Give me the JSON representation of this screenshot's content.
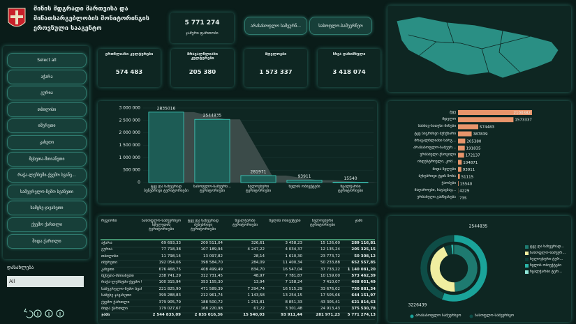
{
  "header": {
    "title_lines": [
      "მიწის მდგრადი მართვისა და",
      "მიწათსარგებლობის მონიტორინგის",
      "ეროვნული სააგენტო"
    ]
  },
  "total": {
    "value": "5 771 274",
    "label": "ჯამური ფართობი"
  },
  "toggle_buttons": [
    "არასასოფლო სამეურნ...",
    "სასოფლო-სამეურნეო"
  ],
  "kpis": [
    {
      "label": "ერთწლიანი კულტურები",
      "value": "574 483"
    },
    {
      "label": "მრავალწლიანი კულტურები",
      "value": "205 380"
    },
    {
      "label": "მდელოები",
      "value": "1 573 337"
    },
    {
      "label": "სხვა დანიშნული",
      "value": "3 418 074"
    }
  ],
  "slicer": [
    "Select all",
    "აჭარა",
    "გურია",
    "თბილისი",
    "იმერეთი",
    "კახეთი",
    "მცხეთა-მთიანეთი",
    "რაჭა-ლეჩხუმი-ქვემო სვანე...",
    "სამეგრელო-ზემო სვანეთი",
    "სამცხე-ჯავახეთი",
    "ქვემო ქართლი",
    "შიდა ქართლი"
  ],
  "filter": {
    "label": "დასახლება",
    "value": "All"
  },
  "chart_data": [
    {
      "type": "bar",
      "categories": [
        "ტყე და ნახევრად ბუნებრივი ტერიტორიები",
        "სასოფლო-სამეურნ... ტერიტორიები",
        "ხელოვნური ტერიტორიები",
        "წყლის ობიექტები",
        "წყალჭარბი ტერიტორიები"
      ],
      "values": [
        2835016,
        2544835,
        281971,
        93911,
        15540
      ],
      "color": "#1d5c55",
      "edge_color": "#3fd0c0",
      "area_color": "#3b4b49",
      "ylim": [
        0,
        3000000
      ],
      "yticks": [
        {
          "value": 0,
          "label": "0"
        },
        {
          "value": 500000,
          "label": "500 000"
        },
        {
          "value": 1000000,
          "label": "1 000 000"
        },
        {
          "value": 1500000,
          "label": "1 500 000"
        },
        {
          "value": 2000000,
          "label": "2 000 000"
        },
        {
          "value": 2500000,
          "label": "2 500 000"
        },
        {
          "value": 3000000,
          "label": "3 000 000"
        }
      ]
    },
    {
      "type": "hbar",
      "categories": [
        "ტყე",
        "მდელო",
        "სახნავ-სათესი მიწები",
        "ტყე სიგრძივი ბუჩქნარი",
        "მრავალწლიანი ნარგ...",
        "არასასოფლო-სამეურ...",
        "ურბანული ქსოვილი",
        "ინდუსტრიული, კომ...",
        "შიდა წყლები",
        "ბუნებრივი ტყის ზონა",
        "ჭაობები",
        "მაღაროები, ნაგავსაყ...",
        "ურბანული გამწვანება"
      ],
      "values": [
        2100382,
        1573337,
        574483,
        387839,
        205380,
        191835,
        172137,
        104871,
        93911,
        51115,
        15540,
        4229,
        735
      ],
      "color": "#e8956b"
    },
    {
      "type": "donut",
      "outer": {
        "categories": [
          "არასასოფლო სამეურნეო",
          "სასოფლო-სამეურნეო"
        ],
        "values": [
          3226439,
          2544835
        ],
        "colors": [
          "#1aa39a",
          "#0e4d47"
        ]
      },
      "inner": {
        "categories": [
          "ტყე და ნახევრად...",
          "სასოფლო-სამეურ...",
          "ხელოვნური ტერ...",
          "წყლის ობიექტები",
          "წყალჭარბი ტერ..."
        ],
        "values": [
          2835016,
          2544835,
          281971,
          93911,
          15540
        ],
        "colors": [
          "#1e7a70",
          "#f0eea0",
          "#0c3d38",
          "#2bb5a8",
          "#8fe6d8"
        ]
      }
    }
  ],
  "table": {
    "columns": [
      "რეგიონი",
      "სასოფლო-სამეურნეო ხმელეთის ტერიტორიები",
      "ტყე და ნახევრად ბუნებრივი ტერიტორიები",
      "წყალჭარბი ტერიტორიები",
      "წყლის ობიექტები",
      "ხელოვნური ტერიტორიები",
      "ჯამი"
    ],
    "rows": [
      [
        "აჭარა",
        "69 693,33",
        "200 511,04",
        "326,61",
        "3 458,23",
        "15 126,60",
        "289 116,81"
      ],
      [
        "გურია",
        "77 718,38",
        "107 189,94",
        "4 247,22",
        "4 034,37",
        "12 135,24",
        "205 325,15"
      ],
      [
        "თბილისი",
        "11 798,14",
        "13 097,82",
        "28,14",
        "1 610,30",
        "23 773,72",
        "50 308,12"
      ],
      [
        "იმერეთი",
        "192 054,06",
        "398 584,70",
        "284,09",
        "11 400,34",
        "50 233,88",
        "652 557,85"
      ],
      [
        "კახეთი",
        "676 468,75",
        "408 499,49",
        "834,70",
        "16 547,04",
        "37 733,22",
        "1 140 081,20"
      ],
      [
        "მცხეთა-მთიანეთი",
        "238 741,29",
        "312 731,45",
        "48,97",
        "7 781,87",
        "10 159,00",
        "573 462,39"
      ],
      [
        "რაჭა-ლეჩხუმი-ქვემო სვანეთი",
        "100 315,94",
        "353 155,30",
        "13,94",
        "7 158,24",
        "7 410,07",
        "468 051,49"
      ],
      [
        "სამეგრელო-ზემო სვანეთი",
        "221 825,90",
        "471 589,39",
        "7 294,74",
        "16 515,29",
        "33 676,02",
        "750 881,34"
      ],
      [
        "სამცხე-ჯავახეთი",
        "399 288,83",
        "212 961,74",
        "1 143,58",
        "13 254,15",
        "17 505,66",
        "644 151,97"
      ],
      [
        "ქვემო ქართლი",
        "379 905,79",
        "188 500,72",
        "1 251,81",
        "8 851,33",
        "43 305,41",
        "621 814,63"
      ],
      [
        "შიდა ქართლი",
        "179 027,67",
        "168 220,98",
        "67,22",
        "3 301,48",
        "24 913,43",
        "375 530,78"
      ],
      [
        "ჯამი",
        "2 544 835,09",
        "2 835 016,36",
        "15 540,03",
        "93 911,44",
        "281 971,23",
        "5 771 274,13"
      ]
    ]
  }
}
